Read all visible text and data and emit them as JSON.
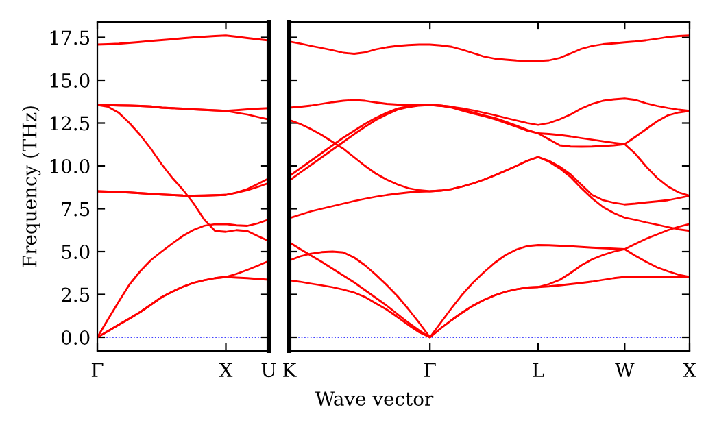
{
  "chart_data": [
    {
      "type": "line",
      "ylabel": "Frequency (THz)",
      "ylim": [
        -0.8,
        18.4
      ],
      "categories": [
        "Γ",
        null,
        null,
        null,
        null,
        null,
        null,
        null,
        null,
        null,
        null,
        null,
        "X",
        null,
        null,
        null,
        "U"
      ],
      "yticks": [
        {
          "value": 0,
          "label": "0.0"
        },
        {
          "value": 2.5,
          "label": "2.5"
        },
        {
          "value": 5,
          "label": "5.0"
        },
        {
          "value": 7.5,
          "label": "7.5"
        },
        {
          "value": 10,
          "label": "10.0"
        },
        {
          "value": 12.5,
          "label": "12.5"
        },
        {
          "value": 15,
          "label": "15.0"
        },
        {
          "value": 17.5,
          "label": "17.5"
        }
      ],
      "ref_lines": [
        {
          "axis": "y",
          "value": 0,
          "color": "#0000ff",
          "line_style": "dotted"
        }
      ],
      "grid": false,
      "marker": "none",
      "line_style": "solid",
      "series": [
        {
          "color": "#ff0000",
          "values": [
            17.08,
            17.1,
            17.13,
            17.18,
            17.23,
            17.29,
            17.34,
            17.39,
            17.45,
            17.5,
            17.54,
            17.58,
            17.61,
            17.54,
            17.46,
            17.39,
            17.32
          ]
        },
        {
          "color": "#ff0000",
          "values": [
            13.56,
            13.55,
            13.53,
            13.52,
            13.5,
            13.47,
            13.4,
            13.37,
            13.34,
            13.3,
            13.27,
            13.24,
            13.21,
            13.25,
            13.3,
            13.34,
            13.37
          ]
        },
        {
          "color": "#ff0000",
          "values": [
            13.56,
            13.55,
            13.53,
            13.52,
            13.5,
            13.47,
            13.4,
            13.37,
            13.34,
            13.3,
            13.27,
            13.24,
            13.21,
            13.1,
            13.0,
            12.85,
            12.71
          ]
        },
        {
          "color": "#ff0000",
          "values": [
            13.56,
            13.45,
            13.1,
            12.5,
            11.8,
            11.0,
            10.1,
            9.3,
            8.6,
            7.8,
            6.85,
            6.2,
            6.15,
            6.25,
            6.2,
            5.9,
            5.62
          ]
        },
        {
          "color": "#ff0000",
          "values": [
            8.52,
            8.5,
            8.48,
            8.45,
            8.41,
            8.37,
            8.33,
            8.3,
            8.27,
            8.26,
            8.27,
            8.29,
            8.31,
            8.45,
            8.65,
            8.95,
            9.27
          ]
        },
        {
          "color": "#ff0000",
          "values": [
            8.52,
            8.5,
            8.48,
            8.45,
            8.41,
            8.37,
            8.33,
            8.3,
            8.27,
            8.26,
            8.27,
            8.29,
            8.31,
            8.43,
            8.58,
            8.78,
            9.0
          ]
        },
        {
          "color": "#ff0000",
          "values": [
            0,
            1.05,
            2.08,
            3.08,
            3.85,
            4.5,
            5.0,
            5.47,
            5.92,
            6.27,
            6.51,
            6.6,
            6.61,
            6.53,
            6.5,
            6.65,
            6.87
          ]
        },
        {
          "color": "#ff0000",
          "values": [
            0,
            0.36,
            0.73,
            1.09,
            1.47,
            1.9,
            2.34,
            2.66,
            2.95,
            3.18,
            3.33,
            3.45,
            3.52,
            3.7,
            3.93,
            4.18,
            4.45
          ]
        },
        {
          "color": "#ff0000",
          "values": [
            0,
            0.36,
            0.73,
            1.09,
            1.47,
            1.9,
            2.34,
            2.66,
            2.95,
            3.18,
            3.33,
            3.45,
            3.52,
            3.48,
            3.45,
            3.4,
            3.36
          ]
        }
      ]
    },
    {
      "type": "line",
      "xlabel": "Wave vector",
      "ylim": [
        -0.8,
        18.4
      ],
      "categories": [
        "K",
        null,
        null,
        null,
        null,
        null,
        null,
        null,
        null,
        null,
        null,
        null,
        null,
        "Γ",
        null,
        null,
        null,
        null,
        null,
        null,
        null,
        null,
        null,
        "L",
        null,
        null,
        null,
        null,
        null,
        null,
        null,
        "W",
        null,
        null,
        null,
        null,
        null,
        "X"
      ],
      "yticks": [
        0,
        2.5,
        5,
        7.5,
        10,
        12.5,
        15,
        17.5
      ],
      "tick_labels": "x",
      "ref_lines": [
        {
          "axis": "y",
          "value": 0,
          "color": "#0000ff",
          "line_style": "dotted"
        }
      ],
      "grid": false,
      "marker": "none",
      "line_style": "solid",
      "series": [
        {
          "color": "#ff0000",
          "values": [
            17.26,
            17.14,
            17.0,
            16.88,
            16.75,
            16.6,
            16.54,
            16.62,
            16.8,
            16.92,
            17.0,
            17.05,
            17.08,
            17.08,
            17.03,
            16.95,
            16.78,
            16.58,
            16.38,
            16.26,
            16.2,
            16.15,
            16.12,
            16.12,
            16.16,
            16.3,
            16.56,
            16.83,
            17.0,
            17.1,
            17.15,
            17.21,
            17.26,
            17.33,
            17.42,
            17.52,
            17.58,
            17.61
          ]
        },
        {
          "color": "#ff0000",
          "values": [
            13.4,
            13.45,
            13.52,
            13.62,
            13.72,
            13.8,
            13.84,
            13.8,
            13.7,
            13.62,
            13.58,
            13.56,
            13.56,
            13.56,
            13.52,
            13.45,
            13.36,
            13.24,
            13.1,
            12.96,
            12.8,
            12.65,
            12.5,
            12.39,
            12.5,
            12.72,
            13.0,
            13.35,
            13.62,
            13.8,
            13.88,
            13.93,
            13.85,
            13.65,
            13.5,
            13.38,
            13.28,
            13.21
          ]
        },
        {
          "color": "#ff0000",
          "values": [
            12.68,
            12.45,
            12.15,
            11.8,
            11.4,
            11.0,
            10.5,
            10.0,
            9.55,
            9.2,
            8.92,
            8.7,
            8.58,
            8.52,
            8.56,
            8.65,
            8.8,
            8.98,
            9.2,
            9.45,
            9.72,
            10.0,
            10.3,
            10.52,
            10.3,
            9.95,
            9.5,
            8.9,
            8.3,
            8.0,
            7.85,
            7.75,
            7.8,
            7.87,
            7.93,
            8.0,
            8.12,
            8.26
          ]
        },
        {
          "color": "#ff0000",
          "values": [
            9.4,
            9.85,
            10.3,
            10.75,
            11.2,
            11.65,
            12.05,
            12.45,
            12.8,
            13.1,
            13.35,
            13.48,
            13.54,
            13.56,
            13.52,
            13.45,
            13.3,
            13.12,
            12.95,
            12.8,
            12.58,
            12.35,
            12.1,
            11.9,
            11.86,
            11.8,
            11.72,
            11.62,
            11.53,
            11.44,
            11.35,
            11.27,
            11.7,
            12.15,
            12.6,
            12.95,
            13.12,
            13.21
          ]
        },
        {
          "color": "#ff0000",
          "values": [
            9.14,
            9.6,
            10.05,
            10.5,
            10.95,
            11.4,
            11.85,
            12.28,
            12.68,
            13.0,
            13.28,
            13.43,
            13.52,
            13.56,
            13.5,
            13.4,
            13.22,
            13.05,
            12.9,
            12.72,
            12.5,
            12.28,
            12.05,
            11.9,
            11.55,
            11.2,
            11.13,
            11.12,
            11.13,
            11.16,
            11.2,
            11.27,
            10.7,
            9.95,
            9.3,
            8.8,
            8.45,
            8.26
          ]
        },
        {
          "color": "#ff0000",
          "values": [
            6.95,
            7.15,
            7.35,
            7.5,
            7.65,
            7.8,
            7.95,
            8.08,
            8.2,
            8.3,
            8.38,
            8.45,
            8.5,
            8.52,
            8.56,
            8.65,
            8.8,
            8.98,
            9.2,
            9.45,
            9.72,
            10.0,
            10.3,
            10.52,
            10.25,
            9.85,
            9.35,
            8.7,
            8.1,
            7.6,
            7.25,
            6.98,
            6.85,
            6.7,
            6.57,
            6.43,
            6.3,
            6.21
          ]
        },
        {
          "color": "#ff0000",
          "values": [
            5.54,
            5.15,
            4.77,
            4.4,
            4.0,
            3.6,
            3.2,
            2.75,
            2.3,
            1.85,
            1.35,
            0.85,
            0.4,
            0,
            0.85,
            1.7,
            2.5,
            3.2,
            3.8,
            4.35,
            4.8,
            5.12,
            5.32,
            5.38,
            5.37,
            5.34,
            5.31,
            5.27,
            5.23,
            5.2,
            5.17,
            5.14,
            5.45,
            5.75,
            6.0,
            6.25,
            6.45,
            6.61
          ]
        },
        {
          "color": "#ff0000",
          "values": [
            4.48,
            4.72,
            4.88,
            4.97,
            5.0,
            4.95,
            4.65,
            4.2,
            3.65,
            3.05,
            2.4,
            1.65,
            0.85,
            0,
            0.52,
            1.0,
            1.45,
            1.85,
            2.18,
            2.45,
            2.66,
            2.8,
            2.9,
            2.93,
            3.1,
            3.35,
            3.75,
            4.2,
            4.55,
            4.8,
            5.0,
            5.14,
            4.75,
            4.4,
            4.08,
            3.85,
            3.65,
            3.52
          ]
        },
        {
          "color": "#ff0000",
          "values": [
            3.33,
            3.24,
            3.13,
            3.03,
            2.92,
            2.78,
            2.61,
            2.35,
            1.98,
            1.62,
            1.18,
            0.72,
            0.3,
            0,
            0.52,
            1.0,
            1.45,
            1.85,
            2.18,
            2.45,
            2.66,
            2.8,
            2.9,
            2.93,
            2.97,
            3.03,
            3.1,
            3.17,
            3.25,
            3.35,
            3.45,
            3.52,
            3.52,
            3.52,
            3.52,
            3.52,
            3.52,
            3.52
          ]
        }
      ]
    }
  ]
}
